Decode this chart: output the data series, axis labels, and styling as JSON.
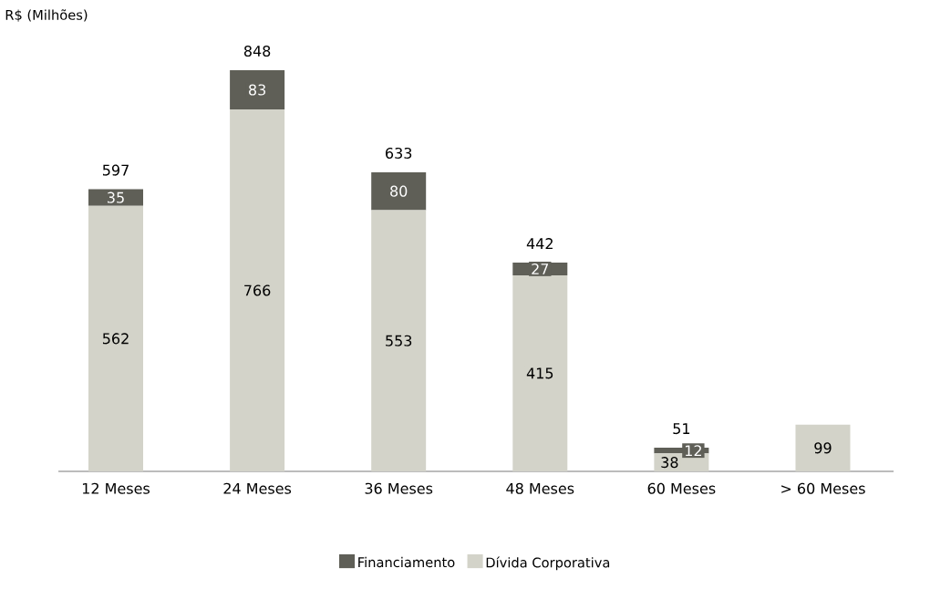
{
  "chart_data": {
    "type": "bar",
    "stacked": true,
    "ylabel": "R$ (Milhões)",
    "categories": [
      "12 Meses",
      "24 Meses",
      "36 Meses",
      "48 Meses",
      "60 Meses",
      "> 60 Meses"
    ],
    "series": [
      {
        "name": "Dívida Corporativa",
        "color": "#d3d3c9",
        "values": [
          562,
          766,
          553,
          415,
          38,
          99
        ]
      },
      {
        "name": "Financiamento",
        "color": "#5f5f57",
        "values": [
          35,
          83,
          80,
          27,
          12,
          null
        ]
      }
    ],
    "data_labels": true,
    "totals": [
      "597",
      "848",
      "633",
      "442",
      "51",
      null
    ],
    "legend": "bottom"
  }
}
